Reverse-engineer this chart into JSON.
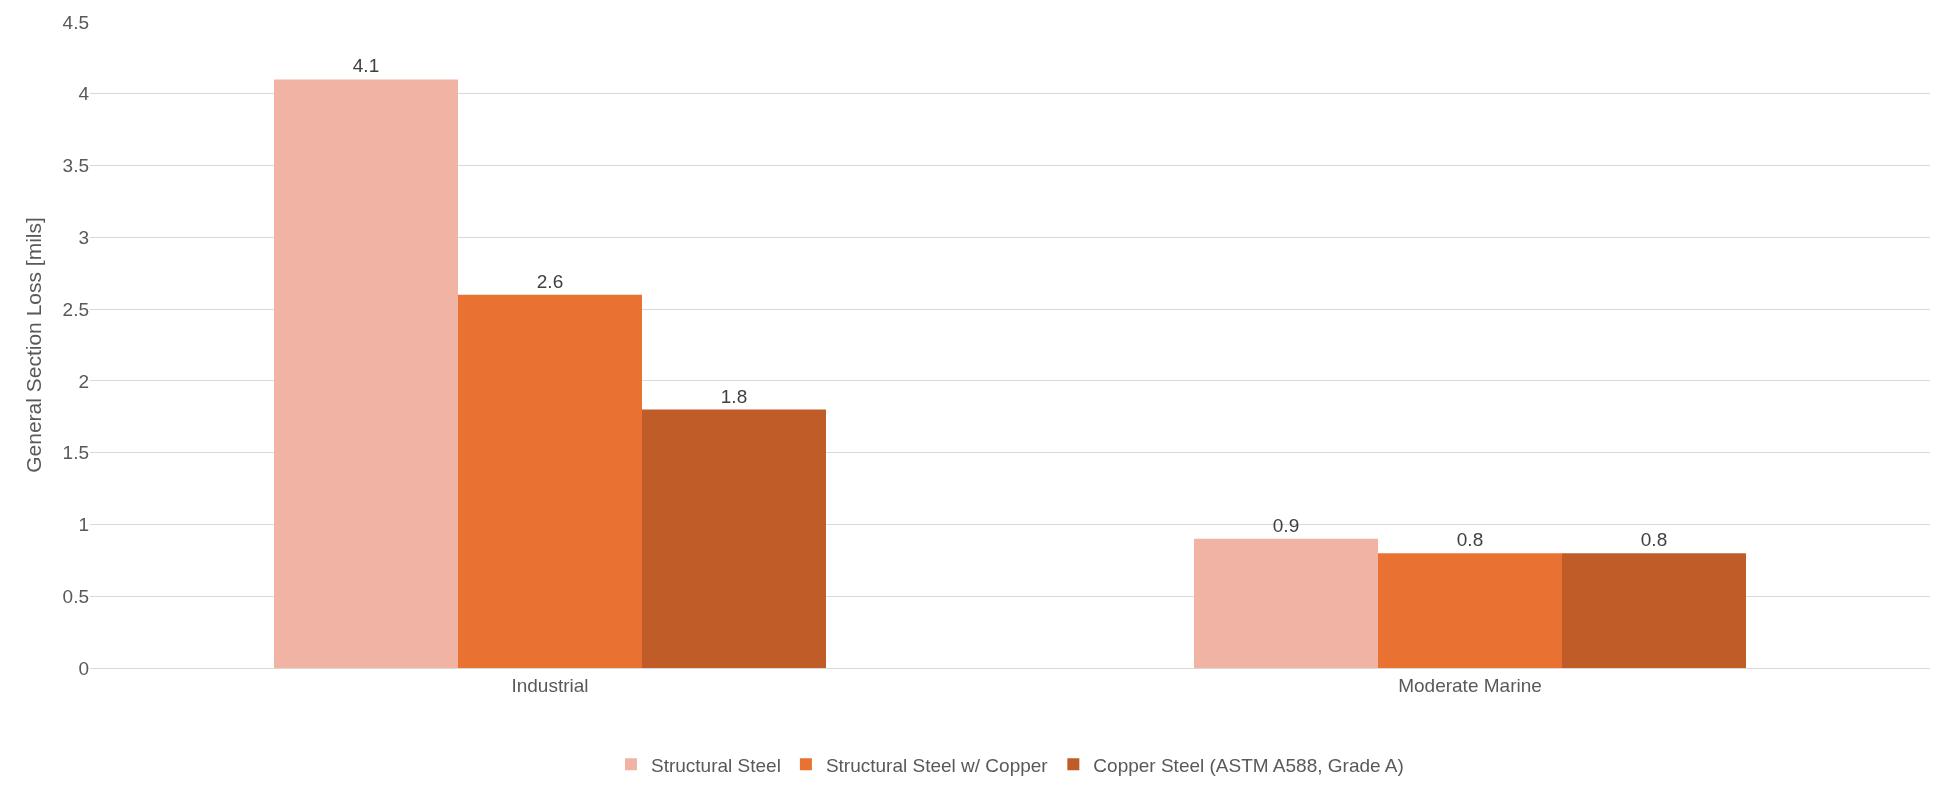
{
  "chart_data": {
    "type": "bar",
    "ylabel": "General Section Loss [mils]",
    "categories": [
      "Industrial",
      "Moderate Marine"
    ],
    "series": [
      {
        "name": "Structural Steel",
        "color": "#f1b3a3",
        "values": [
          4.1,
          0.9
        ]
      },
      {
        "name": "Structural Steel w/ Copper",
        "color": "#e97132",
        "values": [
          2.6,
          0.8
        ]
      },
      {
        "name": "Copper Steel (ASTM A588, Grade A)",
        "color": "#c05c28",
        "values": [
          1.8,
          0.8
        ]
      }
    ],
    "ylim": [
      0,
      4.5
    ],
    "yticks": [
      0,
      0.5,
      1,
      1.5,
      2,
      2.5,
      3,
      3.5,
      4,
      4.5
    ],
    "grid": "y",
    "legend": "bottom",
    "data_labels": true
  }
}
